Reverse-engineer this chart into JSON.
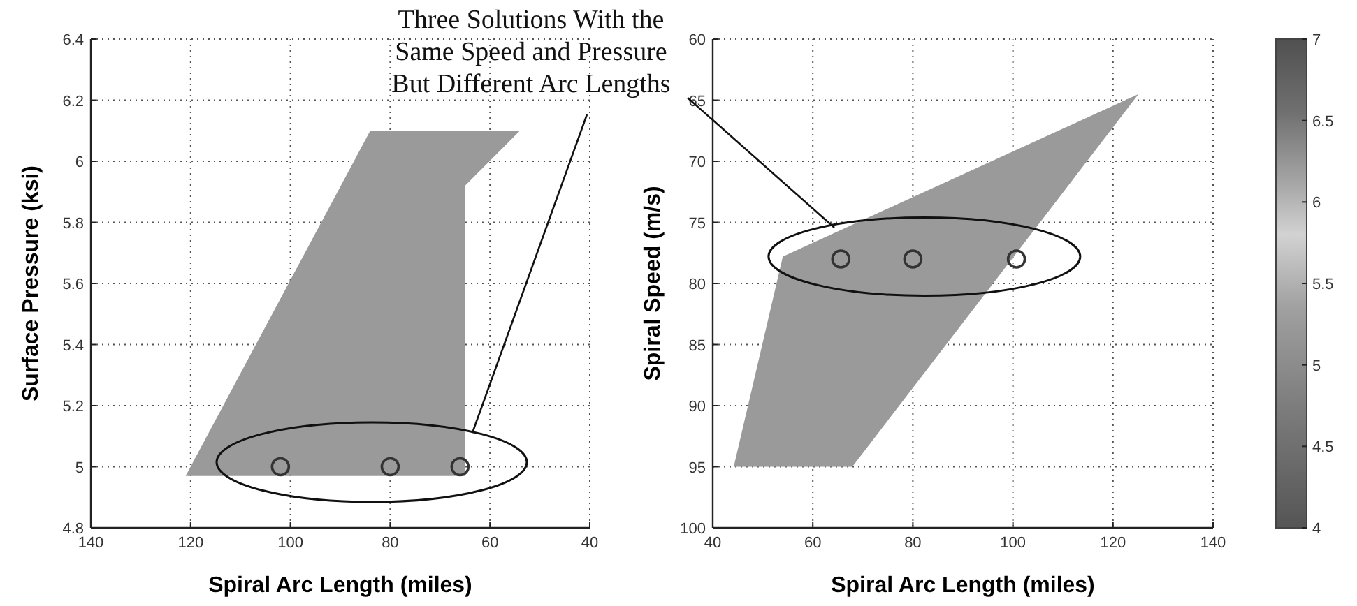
{
  "chart_data": [
    {
      "type": "area",
      "xlabel": "Spiral Arc Length (miles)",
      "ylabel": "Surface Pressure (ksi)",
      "xlim": [
        140,
        40
      ],
      "ylim": [
        4.8,
        6.4
      ],
      "xticks": [
        140,
        120,
        100,
        80,
        60,
        40
      ],
      "yticks": [
        4.8,
        5,
        5.2,
        5.4,
        5.6,
        5.8,
        6,
        6.2,
        6.4
      ],
      "grid": true,
      "annotations": [
        "Three Solutions With the\nSame Speed and Pressure\nBut Different Arc Lengths"
      ],
      "series": [
        {
          "color": "#9a9a9a",
          "x": [
            121,
            84,
            54,
            65,
            65,
            121
          ],
          "values": [
            4.97,
            6.1,
            6.1,
            5.92,
            4.97,
            4.97
          ]
        },
        {
          "type": "scatter",
          "marker": "circle",
          "color": "#333333",
          "x": [
            102,
            80,
            66
          ],
          "values": [
            5,
            5,
            5
          ]
        }
      ]
    },
    {
      "type": "area",
      "xlabel": "Spiral Arc Length (miles)",
      "ylabel": "Spiral Speed (m/s)",
      "xlim": [
        40,
        140
      ],
      "ylim": [
        100,
        60
      ],
      "xticks": [
        40,
        60,
        80,
        100,
        120,
        140
      ],
      "yticks": [
        60,
        65,
        70,
        75,
        80,
        85,
        90,
        95,
        100
      ],
      "grid": true,
      "clim": [
        4,
        7
      ],
      "cticks": [
        4,
        4.5,
        5,
        5.5,
        6,
        6.5,
        7
      ],
      "series": [
        {
          "color": "#9a9a9a",
          "x": [
            44.2,
            54,
            125.1,
            67.9,
            44.2
          ],
          "values": [
            95,
            77.8,
            64.5,
            95,
            95
          ]
        },
        {
          "type": "scatter",
          "marker": "circle",
          "color": "#333333",
          "x": [
            65.6,
            80,
            100.7
          ],
          "values": [
            78,
            78,
            78
          ]
        }
      ]
    }
  ]
}
